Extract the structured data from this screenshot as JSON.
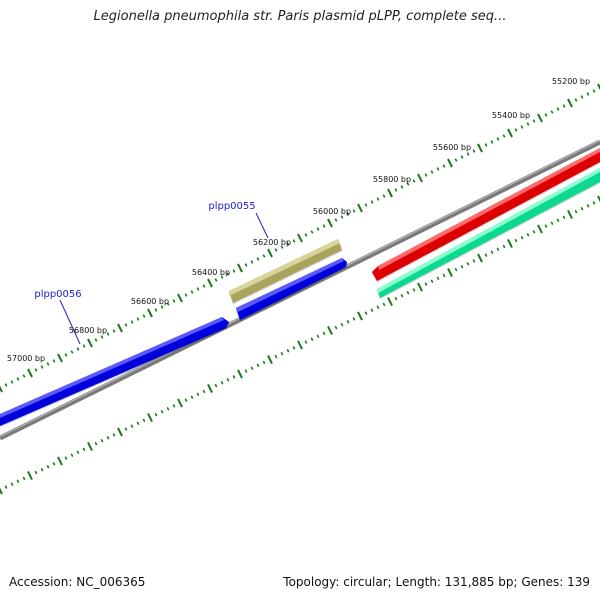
{
  "title": "Legionella pneumophila str. Paris plasmid pLPP, complete seq...",
  "footer": {
    "accession": "Accession: NC_006365",
    "topology": "Topology: circular; Length: 131,885 bp; Genes: 139"
  },
  "colors": {
    "background": "#ffffff",
    "tick": "#1a7a1a",
    "backbone": "#808080",
    "gene_forward": "#0000ee",
    "gene_highlight": "#b5b26a",
    "gene_reverse_1": "#ee0000",
    "gene_reverse_2": "#1ef0a0",
    "gene_label": "#2222cc"
  },
  "ruler": {
    "unit": "bp",
    "labels": [
      "55200 bp",
      "55400 bp",
      "55600 bp",
      "55800 bp",
      "56000 bp",
      "56200 bp",
      "56400 bp",
      "56600 bp",
      "56800 bp",
      "57000 bp"
    ]
  },
  "gene_labels": [
    "plpp0055",
    "plpp0056"
  ]
}
